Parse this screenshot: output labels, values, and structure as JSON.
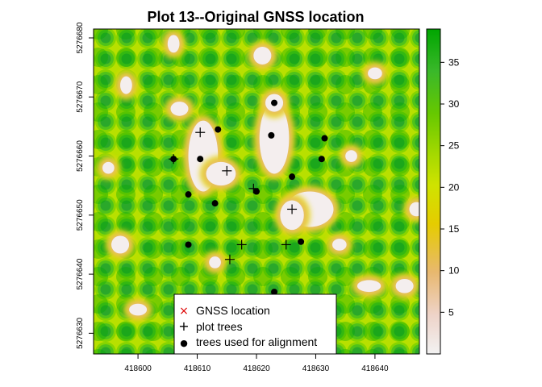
{
  "chart_data": {
    "type": "heatmap",
    "title": "Plot 13--Original GNSS location",
    "xlabel": "",
    "ylabel": "",
    "xlim": [
      418592.5,
      418647.5
    ],
    "ylim": [
      5276626.5,
      5276681.5
    ],
    "x_ticks": [
      418600,
      418610,
      418620,
      418630,
      418640
    ],
    "y_ticks": [
      5276630,
      5276640,
      5276650,
      5276660,
      5276670,
      5276680
    ],
    "colorbar": {
      "range": [
        0,
        39
      ],
      "ticks": [
        5,
        10,
        15,
        20,
        25,
        30,
        35
      ],
      "colors": [
        "#f2f2f2",
        "#edc49f",
        "#e6b350",
        "#e5cc00",
        "#d2e300",
        "#a2d800",
        "#6ccd00",
        "#3ab82a",
        "#2aa82a",
        "#00a600"
      ]
    },
    "canopy_gaps": [
      {
        "x": 418611,
        "y": 5276660,
        "rx": 2.5,
        "ry": 6
      },
      {
        "x": 418614,
        "y": 5276657,
        "rx": 2.5,
        "ry": 2
      },
      {
        "x": 418623,
        "y": 5276663,
        "rx": 2.5,
        "ry": 6
      },
      {
        "x": 418623,
        "y": 5276669,
        "rx": 1.5,
        "ry": 1.5
      },
      {
        "x": 418629,
        "y": 5276651,
        "rx": 4,
        "ry": 3
      },
      {
        "x": 418626,
        "y": 5276650,
        "rx": 2,
        "ry": 2.5
      },
      {
        "x": 418606,
        "y": 5276679,
        "rx": 1,
        "ry": 1.5
      },
      {
        "x": 418621,
        "y": 5276677,
        "rx": 1.5,
        "ry": 1.5
      },
      {
        "x": 418597,
        "y": 5276645,
        "rx": 1.5,
        "ry": 1.5
      },
      {
        "x": 418607,
        "y": 5276668,
        "rx": 1.5,
        "ry": 1.2
      },
      {
        "x": 418613,
        "y": 5276642,
        "rx": 1,
        "ry": 1
      },
      {
        "x": 418598,
        "y": 5276672,
        "rx": 1,
        "ry": 1.5
      },
      {
        "x": 418645,
        "y": 5276638,
        "rx": 1.5,
        "ry": 1.2
      },
      {
        "x": 418639,
        "y": 5276638,
        "rx": 2,
        "ry": 1
      },
      {
        "x": 418634,
        "y": 5276645,
        "rx": 1.2,
        "ry": 1
      },
      {
        "x": 418636,
        "y": 5276660,
        "rx": 1,
        "ry": 1
      },
      {
        "x": 418640,
        "y": 5276674,
        "rx": 1.2,
        "ry": 1
      },
      {
        "x": 418600,
        "y": 5276634,
        "rx": 1.5,
        "ry": 1
      },
      {
        "x": 418595,
        "y": 5276658,
        "rx": 1,
        "ry": 1
      },
      {
        "x": 418647,
        "y": 5276651,
        "rx": 1.2,
        "ry": 1.2
      }
    ],
    "series": [
      {
        "name": "plot trees",
        "marker": "+",
        "points": [
          [
            418610.5,
            5276664
          ],
          [
            418606,
            5276659.5
          ],
          [
            418615,
            5276657.5
          ],
          [
            418619.5,
            5276654.5
          ],
          [
            418626,
            5276651
          ],
          [
            418617.5,
            5276645
          ],
          [
            418615.5,
            5276642.5
          ],
          [
            418625,
            5276645
          ]
        ]
      },
      {
        "name": "trees used for alignment",
        "marker": "●",
        "points": [
          [
            418623,
            5276669
          ],
          [
            418613.5,
            5276664.5
          ],
          [
            418622.5,
            5276663.5
          ],
          [
            418631.5,
            5276663
          ],
          [
            418606,
            5276659.5
          ],
          [
            418610.5,
            5276659.5
          ],
          [
            418631,
            5276659.5
          ],
          [
            418626,
            5276656.5
          ],
          [
            418608.5,
            5276653.5
          ],
          [
            418620,
            5276654
          ],
          [
            418613,
            5276652
          ],
          [
            418608.5,
            5276645
          ],
          [
            418627.5,
            5276645.5
          ],
          [
            418623,
            5276637
          ]
        ]
      }
    ],
    "legend": {
      "position": "bottom-center",
      "items": [
        {
          "label": "GNSS location",
          "marker": "×",
          "color": "#dd0000"
        },
        {
          "label": "plot trees",
          "marker": "+",
          "color": "#000000"
        },
        {
          "label": "trees used for alignment",
          "marker": "●",
          "color": "#000000"
        }
      ]
    }
  }
}
